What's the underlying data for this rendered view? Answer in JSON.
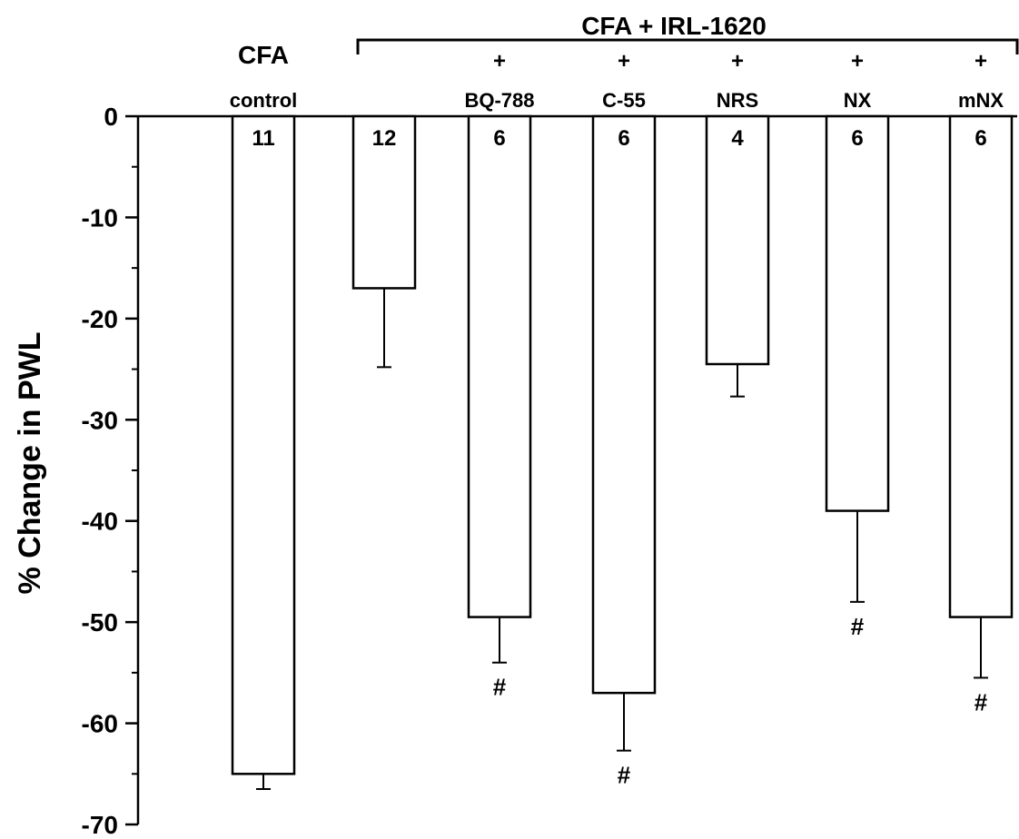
{
  "chart_data": {
    "type": "bar",
    "ylabel": "% Change in PWL",
    "ylim": [
      -70,
      0
    ],
    "yticks": [
      0,
      -10,
      -20,
      -30,
      -40,
      -50,
      -60,
      -70
    ],
    "grid": false,
    "group_label": "CFA + IRL-1620",
    "bars": [
      {
        "top": "CFA",
        "label": "control",
        "value": -65.0,
        "error": 1.5,
        "n": "11",
        "sig": ""
      },
      {
        "top": "",
        "label": "",
        "value": -17.0,
        "error": 7.8,
        "n": "12",
        "sig": ""
      },
      {
        "top": "+",
        "label": "BQ-788",
        "value": -49.5,
        "error": 4.5,
        "n": "6",
        "sig": "#"
      },
      {
        "top": "+",
        "label": "C-55",
        "value": -57.0,
        "error": 5.7,
        "n": "6",
        "sig": "#"
      },
      {
        "top": "+",
        "label": "NRS",
        "value": -24.5,
        "error": 3.2,
        "n": "4",
        "sig": ""
      },
      {
        "top": "+",
        "label": "NX",
        "value": -39.0,
        "error": 9.0,
        "n": "6",
        "sig": "#"
      },
      {
        "top": "+",
        "label": "mNX",
        "value": -49.5,
        "error": 6.0,
        "n": "6",
        "sig": "#"
      }
    ]
  }
}
